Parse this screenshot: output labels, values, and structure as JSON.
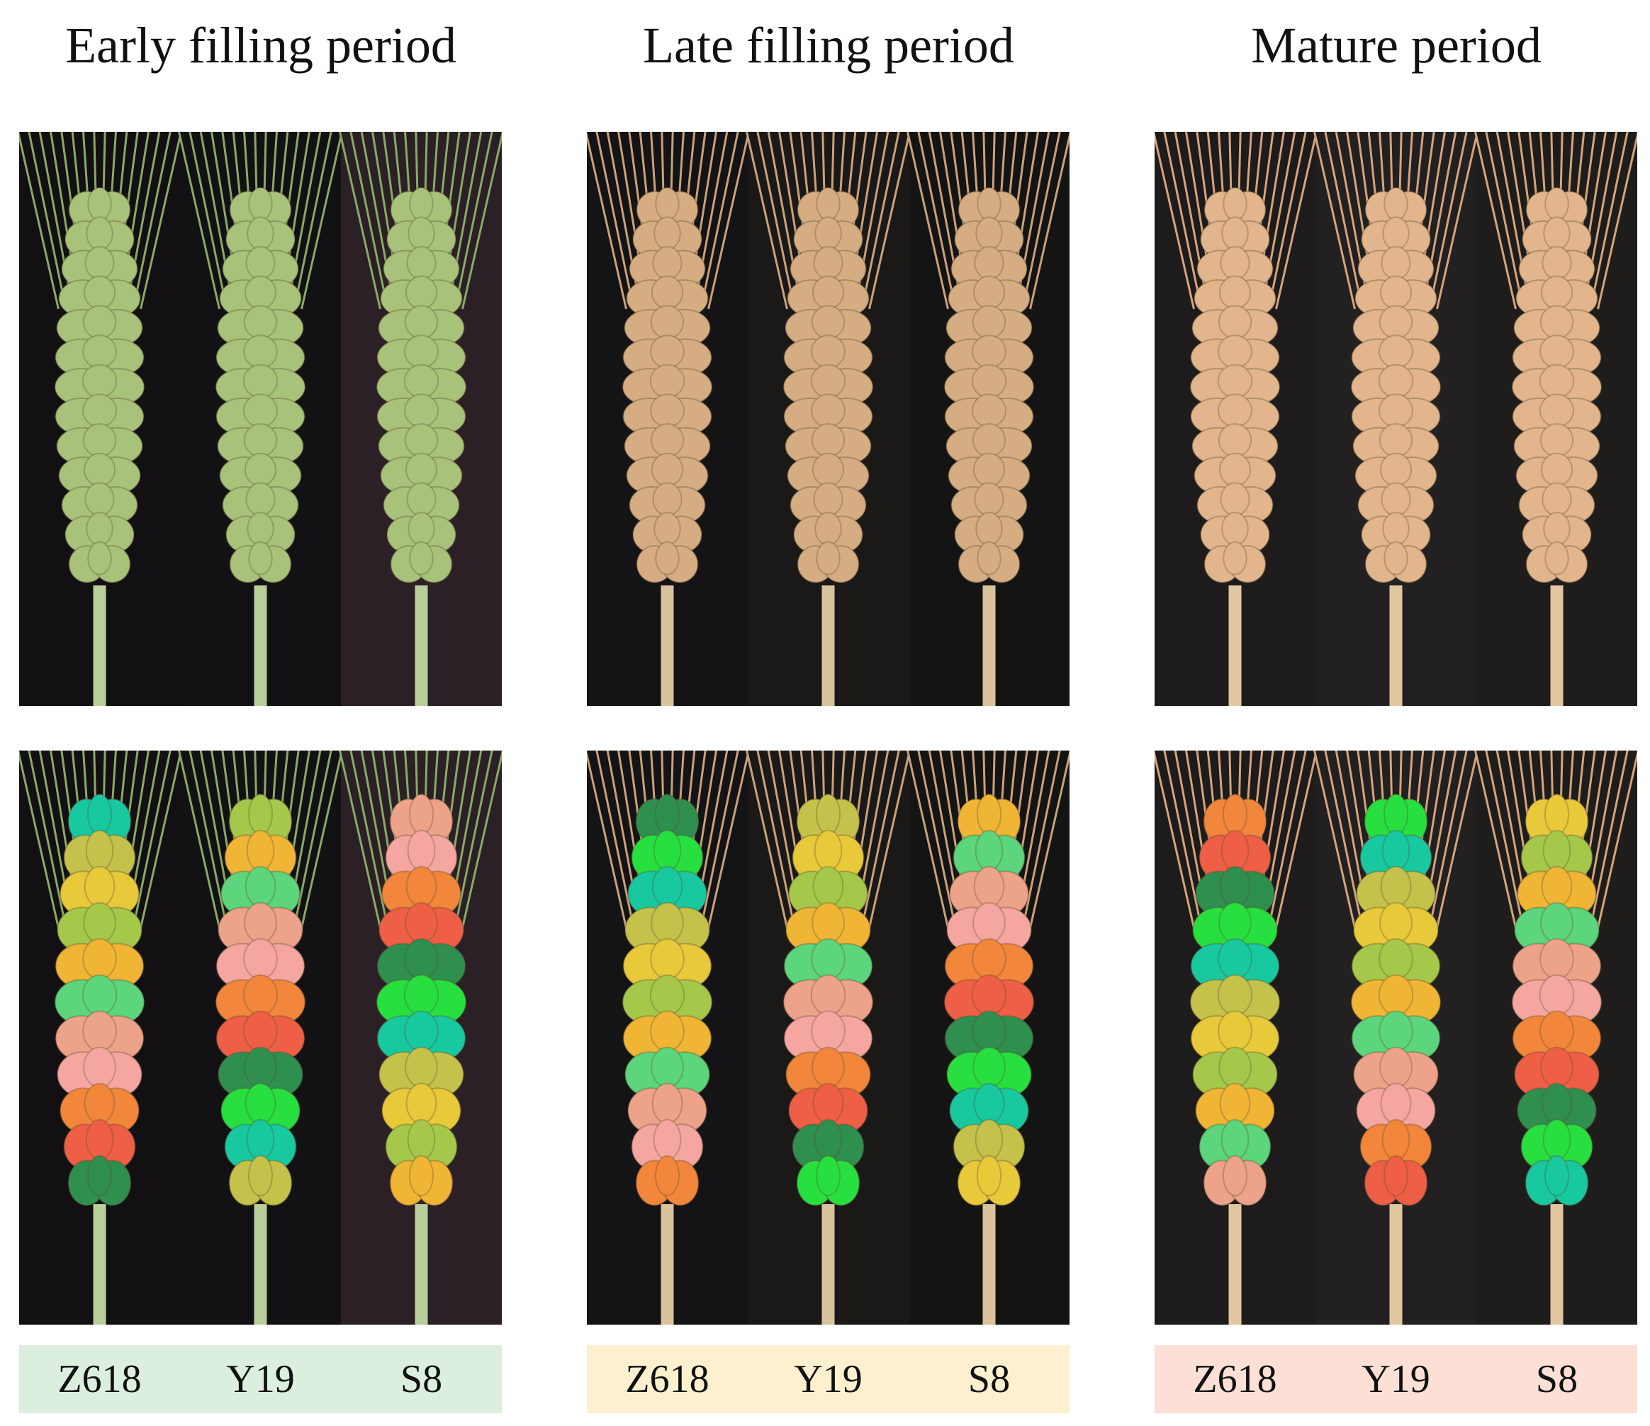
{
  "figure": {
    "groups": [
      {
        "title": "Early filling period",
        "bar_color": "#dceede",
        "varieties": [
          "Z618",
          "Y19",
          "S8"
        ],
        "photo_background": [
          "#121013",
          "#121215",
          "#2b2025"
        ],
        "ear_color": "#a8c27a",
        "awn_color": "#8aa867",
        "stem_color": "#b9cf9a"
      },
      {
        "title": "Late filling period",
        "bar_color": "#fdf0cf",
        "varieties": [
          "Z618",
          "Y19",
          "S8"
        ],
        "photo_background": [
          "#141315",
          "#1a1918",
          "#151414"
        ],
        "ear_color": "#d6ad82",
        "awn_color": "#c9a17a",
        "stem_color": "#d9c39c"
      },
      {
        "title": "Mature period",
        "bar_color": "#fde0d5",
        "varieties": [
          "Z618",
          "Y19",
          "S8"
        ],
        "photo_background": [
          "#1d1b1b",
          "#222020",
          "#1e1d1c"
        ],
        "ear_color": "#e2b58c",
        "awn_color": "#d4a47c",
        "stem_color": "#e1c7a1"
      }
    ],
    "segmentation_palette": [
      "#18c9a0",
      "#5cd57c",
      "#2f8f4f",
      "#a6c84a",
      "#f2863a",
      "#c4c24a",
      "#eda28a",
      "#27e03f",
      "#f0b535",
      "#ee5f45",
      "#e8c93a",
      "#f5a6a0"
    ]
  }
}
